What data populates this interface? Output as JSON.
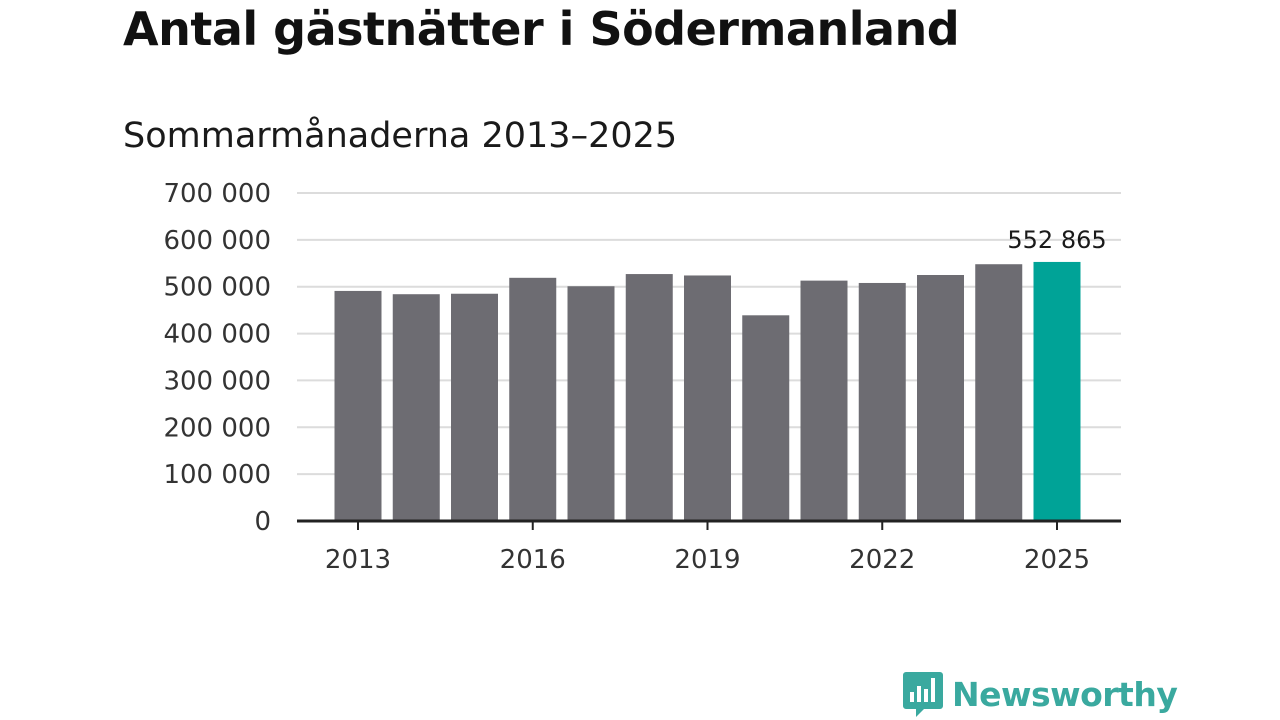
{
  "title": "Antal gästnätter i Södermanland",
  "subtitle": "Sommarmånaderna 2013–2025",
  "colors": {
    "bar": "#6d6c72",
    "highlight": "#00a397",
    "grid": "#dcdcdc",
    "axis": "#222222",
    "brand": "#3aa99f"
  },
  "brand": {
    "name": "Newsworthy",
    "icon": "bar-chart-speech-bubble-icon"
  },
  "chart_data": {
    "type": "bar",
    "categories": [
      "2013",
      "2014",
      "2015",
      "2016",
      "2017",
      "2018",
      "2019",
      "2020",
      "2021",
      "2022",
      "2023",
      "2024",
      "2025"
    ],
    "values": [
      491000,
      484000,
      485000,
      519000,
      501000,
      527000,
      524000,
      439000,
      513000,
      508000,
      525000,
      548000,
      552865
    ],
    "highlight_index": 12,
    "highlight_label": "552 865",
    "x_tick_labels": [
      "2013",
      "2016",
      "2019",
      "2022",
      "2025"
    ],
    "y_ticks": [
      0,
      100000,
      200000,
      300000,
      400000,
      500000,
      600000,
      700000
    ],
    "y_tick_labels": [
      "0",
      "100 000",
      "200 000",
      "300 000",
      "400 000",
      "500 000",
      "600 000",
      "700 000"
    ],
    "ylim": [
      0,
      700000
    ],
    "grid": true,
    "legend": "none",
    "xlabel": "",
    "ylabel": ""
  }
}
